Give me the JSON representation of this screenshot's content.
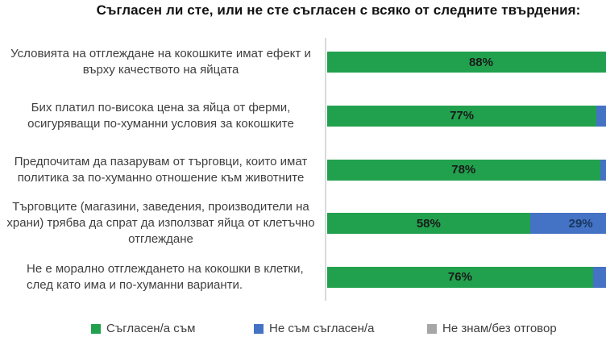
{
  "title": "Съгласен ли сте, или не сте съгласен с всяко от следните твърдения:",
  "colors": {
    "agree": "#21a14d",
    "disagree": "#4472c4",
    "unknown": "#a6a6a6",
    "axis_line": "#d9d9d9",
    "category_text": "#3f3f3f",
    "agree_value_text": "#1a1a1a",
    "disagree_value_text": "#17375e"
  },
  "chart_data": {
    "type": "bar",
    "orientation": "horizontal",
    "stacked": true,
    "grid": false,
    "legend_position": "bottom",
    "xlim": [
      0,
      100
    ],
    "title": "Съгласен ли сте, или не сте съгласен с всяко от следните твърдения:",
    "categories": [
      "Условията на отглеждане на кокошките имат ефект и върху качеството на яйцата",
      "Бих платил по-висока цена за яйца от ферми, осигуряващи по-хуманни условия за кокошките",
      "Предпочитам да пазарувам от търговци, които имат политика за по-хуманно отношение към животните",
      "Търговците (магазини, заведения, производители на храни) трябва да спрат да използват яйца от клетъчно отглеждане",
      "Не е морално отглеждането на кокошки в клетки, след като има и по-хуманни варианти."
    ],
    "series": [
      {
        "name": "Съгласен/а съм",
        "color": "#21a14d",
        "values": [
          88,
          77,
          78,
          58,
          76
        ]
      },
      {
        "name": "Не съм съгласен/а",
        "color": "#4472c4",
        "values": [
          null,
          null,
          null,
          29,
          null
        ]
      },
      {
        "name": "Не знам/без отговор",
        "color": "#a6a6a6",
        "values": [
          null,
          null,
          null,
          null,
          null
        ]
      }
    ],
    "visible_value_labels": [
      "88%",
      "77%",
      "78%",
      "58%",
      "76%",
      "29%"
    ]
  },
  "legend": {
    "items": [
      {
        "label": "Съгласен/а съм",
        "color": "#21a14d"
      },
      {
        "label": "Не съм съгласен/а",
        "color": "#4472c4"
      },
      {
        "label": "Не знам/без отговор",
        "color": "#a6a6a6"
      }
    ]
  }
}
